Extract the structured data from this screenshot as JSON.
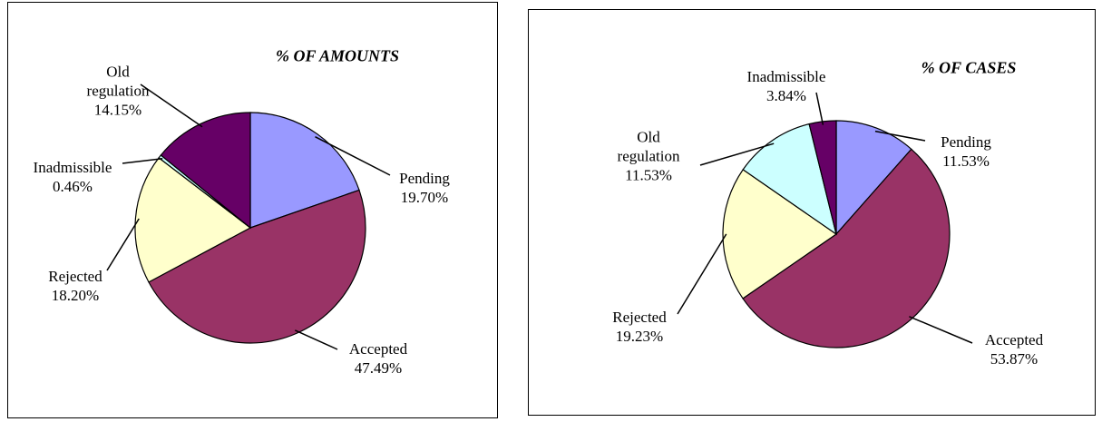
{
  "chart_data": [
    {
      "type": "pie",
      "title": "% OF AMOUNTS",
      "categories": [
        "Pending",
        "Accepted",
        "Rejected",
        "Inadmissible",
        "Old regulation"
      ],
      "values": [
        19.7,
        47.49,
        18.2,
        0.46,
        14.15
      ],
      "value_labels": [
        "19.70%",
        "47.49%",
        "18.20%",
        "0.46%",
        "14.15%"
      ],
      "colors": [
        "#9999ff",
        "#993366",
        "#ffffcc",
        "#ccffff",
        "#660066"
      ]
    },
    {
      "type": "pie",
      "title": "% OF CASES",
      "categories": [
        "Pending",
        "Accepted",
        "Rejected",
        "Old regulation",
        "Inadmissible"
      ],
      "values": [
        11.53,
        53.87,
        19.23,
        11.53,
        3.84
      ],
      "value_labels": [
        "11.53%",
        "53.87%",
        "19.23%",
        "11.53%",
        "3.84%"
      ],
      "colors": [
        "#9999ff",
        "#993366",
        "#ffffcc",
        "#ccffff",
        "#660066"
      ]
    }
  ]
}
